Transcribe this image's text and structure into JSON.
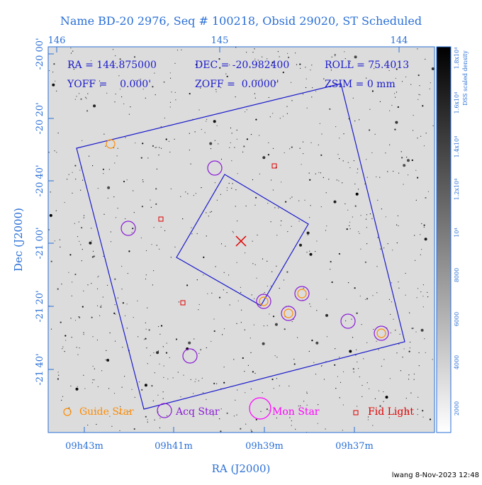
{
  "title": "Name BD-20 2976, Seq # 100218, Obsid 29020, ST Scheduled",
  "header": {
    "ra_label": "RA = 144.875000",
    "dec_label": "DEC = -20.982400",
    "roll_label": "ROLL = 75.4013",
    "yoff_label": "YOFF =    0.000'",
    "zoff_label": "ZOFF =  0.0000'",
    "zsim_label": "ZSIM = 0 mm"
  },
  "axes": {
    "x_title": "RA (J2000)",
    "y_title": "Dec (J2000)",
    "top_ticks": [
      "146",
      "145",
      "144"
    ],
    "bottom_ticks": [
      "09h43m",
      "09h41m",
      "09h39m",
      "09h37m"
    ],
    "left_ticks": [
      "-20 00'",
      "-20 20'",
      "-20 40'",
      "-21 00'",
      "-21 20'",
      "-21 40'"
    ]
  },
  "colorbar": {
    "label": "DSS scaled density",
    "ticks": [
      "2000",
      "4000",
      "6000",
      "8000",
      "10⁴",
      "1.2x10⁴",
      "1.4x10⁴",
      "1.6x10⁴",
      "1.8x10⁴"
    ]
  },
  "legend": {
    "guide": "Guide Star",
    "acq": "Acq Star",
    "mon": "Mon Star",
    "fid": "Fid Light"
  },
  "footer": "lwang  8-Nov-2023 12:48",
  "colors": {
    "axis": "#2a6fd6",
    "field": "#1a1acc",
    "guide": "#ff8c00",
    "acq": "#8a1ad6",
    "mon": "#ff00ff",
    "fid": "#e00000",
    "target": "#e00000"
  }
}
